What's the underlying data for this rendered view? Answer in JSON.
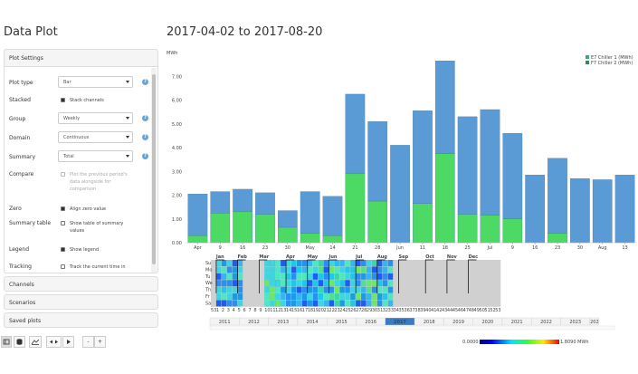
{
  "page": {
    "title": "Data Plot",
    "range_title": "2017-04-02 to 2017-08-20"
  },
  "settings": {
    "header": "Plot Settings",
    "plot_type": {
      "label": "Plot type",
      "value": "Bar"
    },
    "stacked": {
      "label": "Stacked",
      "checkbox": "Stack channels",
      "checked": true
    },
    "group": {
      "label": "Group",
      "value": "Weekly"
    },
    "domain": {
      "label": "Domain",
      "value": "Continuous"
    },
    "summary": {
      "label": "Summary",
      "value": "Total"
    },
    "compare": {
      "label": "Compare",
      "checkbox": "Plot the previous period's data alongside for comparison",
      "checked": false
    },
    "zero": {
      "label": "Zero",
      "checkbox": "Align zero value",
      "checked": true
    },
    "summary_table": {
      "label": "Summary table",
      "checkbox": "Show table of summary values",
      "checked": false
    },
    "legend": {
      "label": "Legend",
      "checkbox": "Show legend",
      "checked": true
    },
    "tracking": {
      "label": "Tracking",
      "checkbox": "Track the current time in",
      "checked": false
    }
  },
  "panels": {
    "channels": "Channels",
    "scenarios": "Scenarios",
    "saved_plots": "Saved plots"
  },
  "toolbar": {
    "zoom_minus": "-",
    "zoom_plus": "+"
  },
  "colors": {
    "series1": "#5b9bd5",
    "series2": "#4cd964",
    "heat_empty": "#d0d0d0",
    "selected_year": "#3a7cc3"
  },
  "chart_data": {
    "type": "bar",
    "stacked": true,
    "ylabel": "MWh",
    "ylim": [
      0,
      8
    ],
    "yticks": [
      "0.00",
      "1.00",
      "2.00",
      "3.00",
      "4.00",
      "5.00",
      "6.00",
      "7.00"
    ],
    "x_tick_labels": [
      "Apr",
      "9",
      "16",
      "23",
      "30",
      "May",
      "14",
      "21",
      "28",
      "Jun",
      "11",
      "18",
      "25",
      "Jul",
      "9",
      "16",
      "23",
      "30",
      "Aug",
      "13"
    ],
    "series": [
      {
        "name": "E7 Chiller 1 (MWh)",
        "color": "#5b9bd5",
        "values": [
          1.75,
          0.9,
          0.95,
          0.9,
          0.7,
          1.75,
          1.65,
          3.35,
          3.35,
          4.1,
          3.9,
          3.9,
          4.1,
          4.45,
          3.6,
          2.85,
          3.15,
          2.7,
          2.65,
          2.85
        ]
      },
      {
        "name": "F7 Chiller 2 (MWh)",
        "color": "#4cd964",
        "values": [
          0.3,
          1.25,
          1.3,
          1.2,
          0.65,
          0.4,
          0.3,
          2.9,
          1.75,
          0,
          1.65,
          3.75,
          1.2,
          1.15,
          1.0,
          0,
          0.4,
          0,
          0,
          0
        ]
      }
    ],
    "legend_position": "top-right"
  },
  "heatmap": {
    "months": [
      "Jan",
      "Feb",
      "Mar",
      "Apr",
      "May",
      "Jun",
      "Jul",
      "Aug",
      "Sep",
      "Oct",
      "Nov",
      "Dec"
    ],
    "days": [
      "Su",
      "Mo",
      "Tu",
      "We",
      "Th",
      "Fr",
      "Sa"
    ],
    "weeks": [
      "53",
      "1",
      "2",
      "3",
      "4",
      "5",
      "6",
      "7",
      "8",
      "9",
      "10",
      "11",
      "12",
      "13",
      "14",
      "15",
      "16",
      "17",
      "18",
      "19",
      "20",
      "21",
      "22",
      "23",
      "24",
      "25",
      "26",
      "27",
      "28",
      "29",
      "30",
      "31",
      "32",
      "33",
      "34",
      "35",
      "36",
      "37",
      "38",
      "39",
      "40",
      "41",
      "42",
      "43",
      "44",
      "45",
      "46",
      "47",
      "48",
      "49",
      "50",
      "51",
      "52",
      "53"
    ],
    "years": [
      "2011",
      "2012",
      "2013",
      "2014",
      "2015",
      "2016",
      "2017",
      "2018",
      "2019",
      "2020",
      "2021",
      "2022",
      "2023",
      "202"
    ],
    "selected_year": "2017",
    "scale_min": "0.0000",
    "scale_max": "1.8090 MWh"
  }
}
